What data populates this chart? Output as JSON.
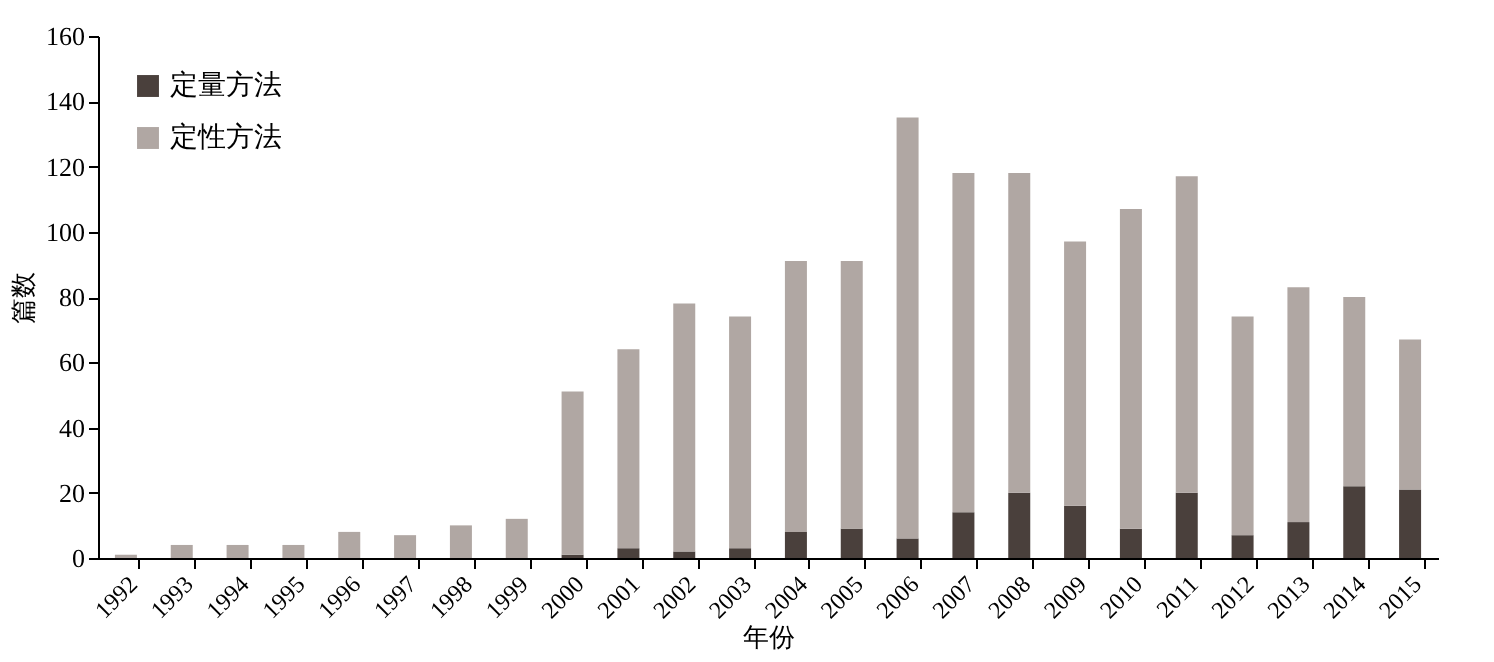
{
  "chart_data": {
    "type": "bar",
    "stacked": true,
    "xlabel": "年份",
    "ylabel": "篇数",
    "categories": [
      "1992",
      "1993",
      "1994",
      "1995",
      "1996",
      "1997",
      "1998",
      "1999",
      "2000",
      "2001",
      "2002",
      "2003",
      "2004",
      "2005",
      "2006",
      "2007",
      "2008",
      "2009",
      "2010",
      "2011",
      "2012",
      "2013",
      "2014",
      "2015"
    ],
    "series": [
      {
        "name": "定量方法",
        "color": "#4a403c",
        "values": [
          0,
          0,
          0,
          0,
          0,
          0,
          0,
          0,
          1,
          3,
          2,
          3,
          8,
          9,
          6,
          14,
          20,
          16,
          9,
          20,
          7,
          11,
          22,
          21
        ]
      },
      {
        "name": "定性方法",
        "color": "#b0a7a3",
        "values": [
          1,
          4,
          4,
          4,
          8,
          7,
          10,
          12,
          50,
          61,
          76,
          71,
          83,
          82,
          129,
          104,
          98,
          81,
          98,
          97,
          67,
          72,
          58,
          46
        ]
      }
    ],
    "ylim": [
      0,
      160
    ],
    "yticks": [
      0,
      20,
      40,
      60,
      80,
      100,
      120,
      140,
      160
    ],
    "grid": false,
    "legend": "top left"
  }
}
